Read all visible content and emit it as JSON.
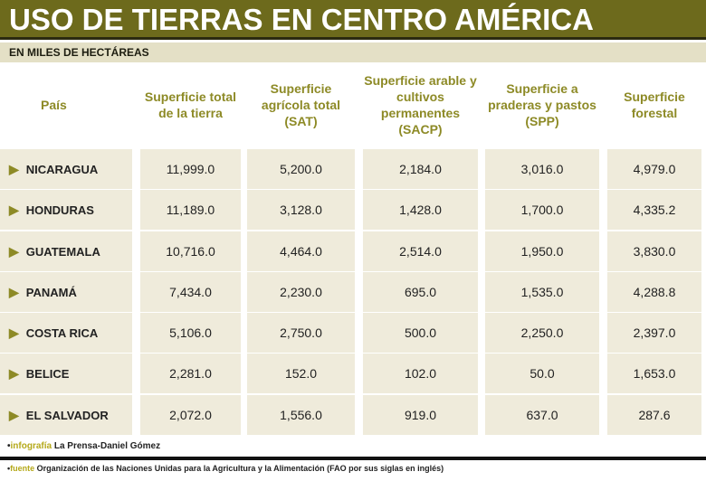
{
  "title": "USO DE TIERRAS EN CENTRO AMÉRICA",
  "subtitle": "EN MILES DE HECTÁREAS",
  "chart_data": {
    "type": "table",
    "title": "USO DE TIERRAS EN CENTRO AMÉRICA",
    "units": "EN MILES DE HECTÁREAS",
    "columns": [
      "País",
      "Superficie total de la tierra",
      "Superficie agrícola total (SAT)",
      "Superficie arable y cultivos permanentes (SACP)",
      "Superficie a praderas y pastos (SPP)",
      "Superficie forestal"
    ],
    "rows": [
      [
        "NICARAGUA",
        "11,999.0",
        "5,200.0",
        "2,184.0",
        "3,016.0",
        "4,979.0"
      ],
      [
        "HONDURAS",
        "11,189.0",
        "3,128.0",
        "1,428.0",
        "1,700.0",
        "4,335.2"
      ],
      [
        "GUATEMALA",
        "10,716.0",
        "4,464.0",
        "2,514.0",
        "1,950.0",
        "3,830.0"
      ],
      [
        "PANAMÁ",
        "7,434.0",
        "2,230.0",
        "695.0",
        "1,535.0",
        "4,288.8"
      ],
      [
        "COSTA RICA",
        "5,106.0",
        "2,750.0",
        "500.0",
        "2,250.0",
        "2,397.0"
      ],
      [
        "BELICE",
        "2,281.0",
        "152.0",
        "102.0",
        "50.0",
        "1,653.0"
      ],
      [
        "EL SALVADOR",
        "2,072.0",
        "1,556.0",
        "919.0",
        "637.0",
        "287.6"
      ]
    ]
  },
  "footer": {
    "credit_label": "infografía",
    "credit": "La Prensa-Daniel Gómez",
    "source_label": "fuente",
    "source": "Organización de las Naciones Unidas para la Agricultura y la Alimentación (FAO por sus siglas en inglés)"
  },
  "colors": {
    "title_bg": "#6d6a1c",
    "header_text": "#8d8a26",
    "cell_bg": "#efebdb"
  }
}
